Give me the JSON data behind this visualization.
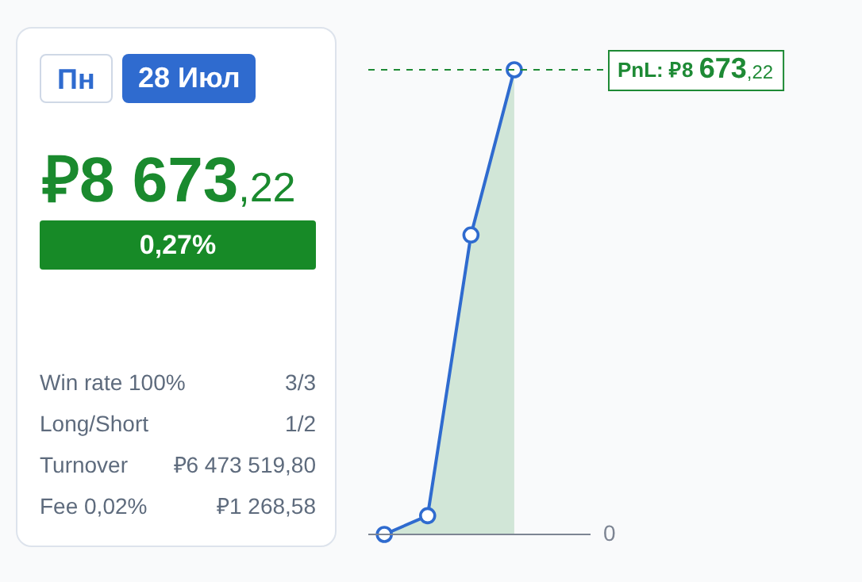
{
  "chart_data": [
    {
      "type": "other",
      "title": "₽8 673,22",
      "annotations": [
        "Пн",
        "28 Июл",
        "0,27%",
        "Win rate 100%",
        "3/3",
        "Long/Short",
        "1/2",
        "Turnover",
        "₽6 473 519,80",
        "Fee 0,02%",
        "₽1 268,58"
      ]
    },
    {
      "type": "area",
      "categories": [
        null,
        null,
        null,
        null
      ],
      "series": [
        {
          "color": "#2f6bcf",
          "values": [
            0,
            350,
            5590,
            8673.22
          ]
        }
      ],
      "ylim": [
        0,
        8673.22
      ],
      "grid": false,
      "legend": false,
      "marker": "circle",
      "ref_lines": [
        {
          "axis": "y",
          "value": 0,
          "label": "0",
          "color": "#7d8593",
          "line_style": "solid"
        },
        {
          "axis": "y",
          "value": 8673.22,
          "label": "PnL: ₽8 673,22",
          "color": "#1e8a35",
          "line_style": "dashed"
        }
      ]
    }
  ]
}
